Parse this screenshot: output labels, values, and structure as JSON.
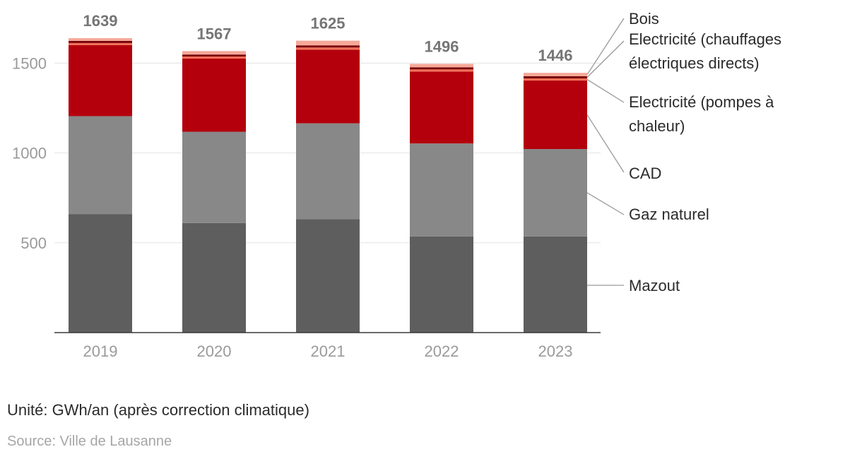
{
  "chart_data": {
    "type": "bar",
    "stacked": true,
    "categories": [
      "2019",
      "2020",
      "2021",
      "2022",
      "2023"
    ],
    "totals": [
      1639,
      1567,
      1625,
      1496,
      1446
    ],
    "ylim": [
      0,
      1650
    ],
    "yticks": [
      500,
      1000,
      1500
    ],
    "grid": true,
    "legend_placement": "right, label-annotated",
    "series": [
      {
        "name": "Mazout",
        "color": "#5e5e5e",
        "values": [
          660,
          610,
          632,
          535,
          535
        ]
      },
      {
        "name": "Gaz naturel",
        "color": "#888888",
        "values": [
          545,
          508,
          533,
          518,
          487
        ]
      },
      {
        "name": "CAD",
        "color": "#b3000c",
        "values": [
          395,
          407,
          410,
          400,
          381
        ]
      },
      {
        "name": "Electricité (pompes à chaleur)",
        "color": "#f07058",
        "values": [
          12,
          12,
          12,
          12,
          12
        ]
      },
      {
        "name": "Electricité (chauffages électriques directs)",
        "color": "#7a0008",
        "values": [
          12,
          11,
          12,
          12,
          12
        ]
      },
      {
        "name": "Bois",
        "color": "#f5a898",
        "values": [
          15,
          19,
          26,
          19,
          19
        ]
      }
    ],
    "legend": {
      "bois": "Bois",
      "elec_direct_1": "Electricité (chauffages",
      "elec_direct_2": "électriques directs)",
      "elec_pac_1": "Electricité (pompes à",
      "elec_pac_2": "chaleur)",
      "cad": "CAD",
      "gaz": "Gaz naturel",
      "mazout": "Mazout"
    }
  },
  "footer": {
    "unit": "Unité: GWh/an (après correction climatique)",
    "source": "Source: Ville de Lausanne"
  }
}
